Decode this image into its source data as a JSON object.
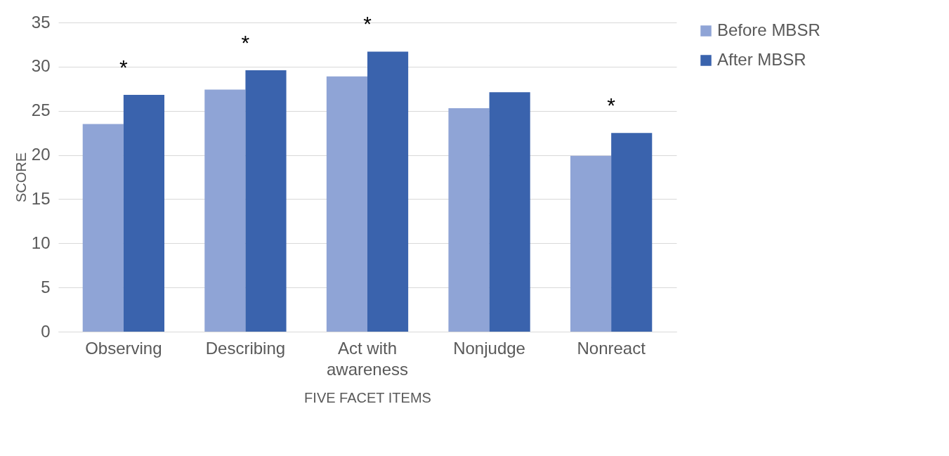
{
  "chart_data": {
    "type": "bar",
    "xlabel": "FIVE FACET ITEMS",
    "ylabel": "SCORE",
    "categories": [
      "Observing",
      "Describing",
      "Act with awareness",
      "Nonjudge",
      "Nonreact"
    ],
    "series": [
      {
        "name": "Before MBSR",
        "color": "#8fa4d6",
        "values": [
          23.5,
          27.4,
          28.9,
          25.3,
          19.9
        ]
      },
      {
        "name": "After MBSR",
        "color": "#3a63ad",
        "values": [
          26.8,
          29.6,
          31.7,
          27.1,
          22.5
        ]
      }
    ],
    "ylim": [
      0,
      35
    ],
    "yticks": [
      0,
      5,
      10,
      15,
      20,
      25,
      30,
      35
    ],
    "grid": "y",
    "legend": "right",
    "annotations": [
      "*",
      "*",
      "*",
      "*"
    ]
  }
}
